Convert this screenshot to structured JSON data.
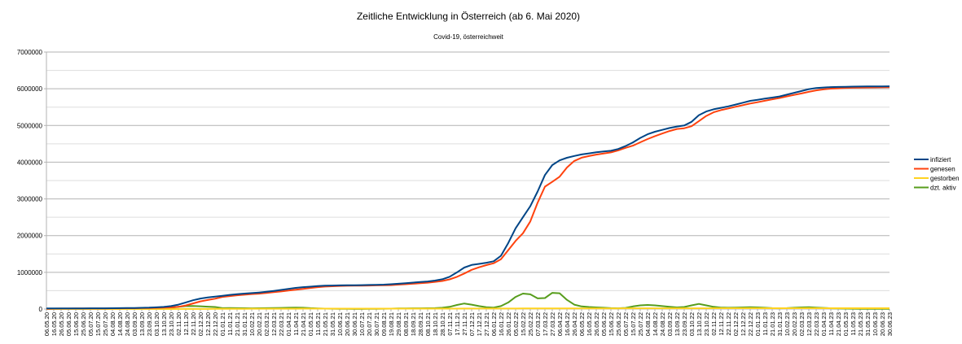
{
  "chart_data": {
    "type": "line",
    "title": "Zeitliche Entwicklung in Österreich  (ab 6. Mai 2020)",
    "subtitle": "Covid-19, österreichweit",
    "xlabel": "",
    "ylabel": "",
    "ylim": [
      0,
      7000000
    ],
    "yticks": [
      "0",
      "1000000",
      "2000000",
      "3000000",
      "4000000",
      "5000000",
      "6000000",
      "7000000"
    ],
    "ytick_values": [
      0,
      1000000,
      2000000,
      3000000,
      4000000,
      5000000,
      6000000,
      7000000
    ],
    "grid": true,
    "legend_position": "right",
    "value_scale": 1000,
    "x": [
      "06.05.20",
      "16.05.20",
      "26.05.20",
      "05.06.20",
      "15.06.20",
      "25.06.20",
      "05.07.20",
      "15.07.20",
      "25.07.20",
      "04.08.20",
      "14.08.20",
      "24.08.20",
      "03.09.20",
      "13.09.20",
      "23.09.20",
      "03.10.20",
      "13.10.20",
      "23.10.20",
      "02.11.20",
      "12.11.20",
      "22.11.20",
      "02.12.20",
      "12.12.20",
      "22.12.20",
      "01.01.21",
      "11.01.21",
      "21.01.21",
      "31.01.21",
      "10.02.21",
      "20.02.21",
      "02.03.21",
      "12.03.21",
      "22.03.21",
      "01.04.21",
      "11.04.21",
      "21.04.21",
      "01.05.21",
      "11.05.21",
      "21.05.21",
      "31.05.21",
      "10.06.21",
      "20.06.21",
      "30.06.21",
      "10.07.21",
      "20.07.21",
      "30.07.21",
      "09.08.21",
      "19.08.21",
      "29.08.21",
      "08.09.21",
      "18.09.21",
      "28.09.21",
      "08.10.21",
      "18.10.21",
      "28.10.21",
      "07.11.21",
      "17.11.21",
      "27.11.21",
      "07.12.21",
      "17.12.21",
      "27.12.21",
      "06.01.22",
      "16.01.22",
      "26.01.22",
      "05.02.22",
      "15.02.22",
      "25.02.22",
      "07.03.22",
      "17.03.22",
      "27.03.22",
      "06.04.22",
      "16.04.22",
      "26.04.22",
      "06.05.22",
      "16.05.22",
      "26.05.22",
      "05.06.22",
      "15.06.22",
      "25.06.22",
      "05.07.22",
      "15.07.22",
      "25.07.22",
      "04.08.22",
      "14.08.22",
      "24.08.22",
      "03.09.22",
      "13.09.22",
      "23.09.22",
      "03.10.22",
      "13.10.22",
      "23.10.22",
      "02.11.22",
      "12.11.22",
      "22.11.22",
      "02.12.22",
      "12.12.22",
      "22.12.22",
      "01.01.23",
      "11.01.23",
      "21.01.23",
      "31.01.23",
      "10.02.23",
      "20.02.23",
      "02.03.23",
      "12.03.23",
      "22.03.23",
      "01.04.23",
      "11.04.23",
      "21.04.23",
      "01.05.23",
      "11.05.23",
      "21.05.23",
      "31.05.23",
      "10.06.23",
      "20.06.23",
      "30.06.23"
    ],
    "series": [
      {
        "name": "infiziert",
        "color": "#004586",
        "values": [
          16,
          17,
          17,
          17,
          17,
          18,
          19,
          20,
          21,
          22,
          24,
          26,
          29,
          33,
          38,
          46,
          58,
          80,
          120,
          180,
          240,
          285,
          315,
          340,
          360,
          385,
          405,
          420,
          435,
          450,
          470,
          495,
          520,
          550,
          575,
          595,
          610,
          625,
          635,
          640,
          645,
          648,
          650,
          652,
          655,
          660,
          665,
          675,
          690,
          705,
          720,
          735,
          750,
          775,
          810,
          880,
          1000,
          1130,
          1200,
          1230,
          1260,
          1300,
          1450,
          1800,
          2200,
          2500,
          2800,
          3200,
          3650,
          3920,
          4050,
          4120,
          4170,
          4210,
          4240,
          4270,
          4290,
          4310,
          4360,
          4440,
          4540,
          4660,
          4760,
          4830,
          4880,
          4930,
          4970,
          5000,
          5100,
          5280,
          5380,
          5440,
          5480,
          5520,
          5570,
          5620,
          5670,
          5700,
          5730,
          5760,
          5790,
          5840,
          5890,
          5940,
          5990,
          6020,
          6035,
          6045,
          6050,
          6055,
          6058,
          6060,
          6062,
          6064,
          6066,
          6068
        ]
      },
      {
        "name": "genesen",
        "color": "#ff420e",
        "derived_from": [
          "infiziert",
          "dzt. aktiv",
          "gestorben"
        ]
      },
      {
        "name": "gestorben",
        "color": "#ffd320",
        "values": [
          0.6,
          0.6,
          0.7,
          0.7,
          0.7,
          0.7,
          0.7,
          0.7,
          0.7,
          0.7,
          0.7,
          0.7,
          0.8,
          0.8,
          0.8,
          0.9,
          0.9,
          1.0,
          1.2,
          1.5,
          2.0,
          2.6,
          3.3,
          4.1,
          4.8,
          5.5,
          6.6,
          7.5,
          8.0,
          8.3,
          8.5,
          8.8,
          9.1,
          9.5,
          9.9,
          10.2,
          10.4,
          10.5,
          10.6,
          10.7,
          10.7,
          10.7,
          10.7,
          10.7,
          10.7,
          10.8,
          10.8,
          10.8,
          10.8,
          10.9,
          10.9,
          11.0,
          11.0,
          11.1,
          11.2,
          11.4,
          11.8,
          12.4,
          13.0,
          13.5,
          13.7,
          13.8,
          13.9,
          14.0,
          14.2,
          14.4,
          14.6,
          14.9,
          15.1,
          15.4,
          15.7,
          16.0,
          16.6,
          17.5,
          18.2,
          18.5,
          18.6,
          18.7,
          18.8,
          18.9,
          19.1,
          19.3,
          19.5,
          19.7,
          19.9,
          20.0,
          20.1,
          20.2,
          20.4,
          20.7,
          20.9,
          21.1,
          21.2,
          21.3,
          21.5,
          21.7,
          21.9,
          21.9,
          22.0,
          22.1,
          22.2,
          22.3,
          22.4,
          22.5,
          22.6,
          22.7,
          22.7,
          22.8,
          22.8,
          22.9,
          22.9,
          22.9,
          22.9,
          23.0,
          23.0,
          23.0
        ]
      },
      {
        "name": "dzt. aktiv",
        "color": "#579d1c",
        "values": [
          10,
          5,
          3,
          2,
          1,
          1,
          1,
          2,
          2,
          2,
          3,
          4,
          5,
          6,
          8,
          12,
          20,
          35,
          60,
          80,
          85,
          75,
          65,
          55,
          25,
          28,
          25,
          22,
          20,
          22,
          25,
          28,
          32,
          35,
          38,
          35,
          25,
          18,
          12,
          8,
          5,
          4,
          3,
          3,
          4,
          5,
          8,
          12,
          15,
          18,
          20,
          20,
          22,
          25,
          35,
          60,
          110,
          150,
          120,
          80,
          50,
          40,
          80,
          180,
          330,
          420,
          400,
          290,
          300,
          440,
          430,
          250,
          120,
          70,
          55,
          45,
          35,
          25,
          20,
          30,
          70,
          100,
          110,
          100,
          80,
          60,
          45,
          55,
          100,
          140,
          100,
          60,
          40,
          35,
          40,
          45,
          50,
          45,
          35,
          25,
          20,
          25,
          35,
          45,
          50,
          40,
          30,
          20,
          15,
          10,
          8,
          6,
          5,
          5,
          5,
          5
        ]
      }
    ]
  }
}
